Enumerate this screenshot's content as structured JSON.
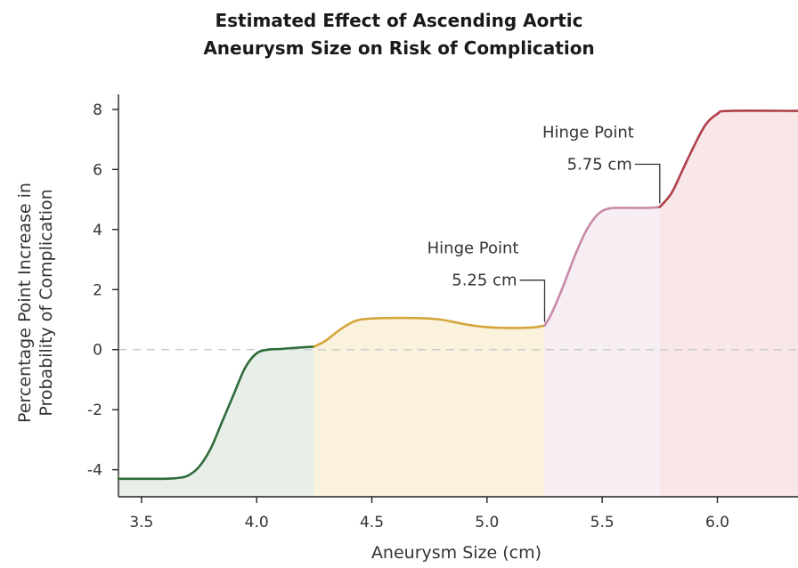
{
  "chart_data": {
    "type": "line",
    "title": [
      "Estimated Effect of Ascending Aortic",
      "Aneurysm Size  on Risk of Complication"
    ],
    "xlabel": "Aneurysm Size (cm)",
    "ylabel": [
      "Percentage Point Increase in",
      "Probability of Complication"
    ],
    "xlim": [
      3.4,
      6.35
    ],
    "ylim": [
      -4.9,
      8.5
    ],
    "x_ticks": [
      3.5,
      4.0,
      4.5,
      5.0,
      5.5,
      6.0
    ],
    "x_tick_labels": [
      "3.5",
      "4.0",
      "4.5",
      "5.0",
      "5.5",
      "6.0"
    ],
    "y_ticks": [
      8,
      6,
      4,
      2,
      0,
      -2,
      -4
    ],
    "y_tick_labels": [
      "8",
      "6",
      "4",
      "2",
      "0",
      "-2",
      "-4"
    ],
    "reference_line": {
      "y": 0,
      "style": "dashed",
      "color": "#cccccc"
    },
    "grid": false,
    "segments": [
      {
        "x_range": [
          3.4,
          4.25
        ],
        "line_color": "#2e6b3a",
        "fill_color": "#e8efe9",
        "points": [
          [
            3.4,
            -4.3
          ],
          [
            3.5,
            -4.3
          ],
          [
            3.6,
            -4.3
          ],
          [
            3.65,
            -4.28
          ],
          [
            3.7,
            -4.2
          ],
          [
            3.75,
            -3.9
          ],
          [
            3.8,
            -3.3
          ],
          [
            3.85,
            -2.4
          ],
          [
            3.9,
            -1.5
          ],
          [
            3.95,
            -0.6
          ],
          [
            4.0,
            -0.12
          ],
          [
            4.05,
            0.0
          ],
          [
            4.1,
            0.02
          ],
          [
            4.15,
            0.05
          ],
          [
            4.25,
            0.1
          ]
        ]
      },
      {
        "x_range": [
          4.25,
          5.25
        ],
        "line_color": "#d4a53a",
        "fill_color": "#fbf2de",
        "points": [
          [
            4.25,
            0.1
          ],
          [
            4.3,
            0.3
          ],
          [
            4.35,
            0.6
          ],
          [
            4.4,
            0.85
          ],
          [
            4.45,
            1.0
          ],
          [
            4.55,
            1.05
          ],
          [
            4.7,
            1.05
          ],
          [
            4.8,
            1.0
          ],
          [
            4.9,
            0.85
          ],
          [
            5.0,
            0.75
          ],
          [
            5.1,
            0.72
          ],
          [
            5.2,
            0.74
          ],
          [
            5.25,
            0.8
          ]
        ]
      },
      {
        "x_range": [
          5.25,
          5.75
        ],
        "line_color": "#c98aaa",
        "fill_color": "#f6eef2",
        "points": [
          [
            5.25,
            0.8
          ],
          [
            5.28,
            1.2
          ],
          [
            5.33,
            2.1
          ],
          [
            5.38,
            3.1
          ],
          [
            5.43,
            3.95
          ],
          [
            5.48,
            4.5
          ],
          [
            5.53,
            4.7
          ],
          [
            5.6,
            4.72
          ],
          [
            5.7,
            4.72
          ],
          [
            5.75,
            4.75
          ]
        ]
      },
      {
        "x_range": [
          5.75,
          6.35
        ],
        "line_color": "#b0404b",
        "fill_color": "#f9e6e7",
        "points": [
          [
            5.75,
            4.75
          ],
          [
            5.8,
            5.2
          ],
          [
            5.85,
            6.0
          ],
          [
            5.9,
            6.8
          ],
          [
            5.95,
            7.5
          ],
          [
            6.0,
            7.85
          ],
          [
            6.05,
            7.95
          ],
          [
            6.35,
            7.95
          ]
        ]
      }
    ],
    "annotations": [
      {
        "line1": "Hinge Point",
        "line2": "5.25 cm",
        "x": 5.25,
        "y": 0.8
      },
      {
        "line1": "Hinge Point",
        "line2": "5.75 cm",
        "x": 5.75,
        "y": 4.75
      }
    ]
  }
}
